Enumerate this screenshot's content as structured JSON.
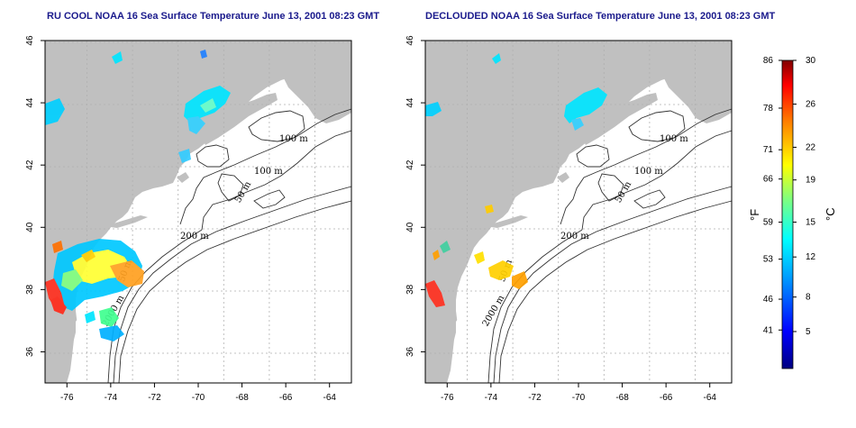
{
  "panels": [
    {
      "title": "RU COOL NOAA 16 Sea Surface Temperature June 13, 2001 08:23 GMT",
      "x_ticks": [
        "-76",
        "-74",
        "-72",
        "-70",
        "-68",
        "-66",
        "-64"
      ],
      "y_ticks": [
        "46",
        "44",
        "42",
        "40",
        "38",
        "36"
      ],
      "contours": [
        "100 m",
        "100 m",
        "50 m",
        "200 m",
        "50 m",
        "2000 m"
      ]
    },
    {
      "title": "DECLOUDED NOAA 16 Sea Surface Temperature June 13, 2001 08:23 GMT",
      "x_ticks": [
        "-76",
        "-74",
        "-72",
        "-70",
        "-68",
        "-66",
        "-64"
      ],
      "y_ticks": [
        "46",
        "44",
        "42",
        "40",
        "38",
        "36"
      ],
      "contours": [
        "100 m",
        "100 m",
        "50 m",
        "200 m",
        "50 m",
        "2000 m"
      ]
    }
  ],
  "colorbar": {
    "fahrenheit_ticks": [
      "86",
      "78",
      "71",
      "66",
      "59",
      "53",
      "46",
      "41"
    ],
    "celsius_ticks": [
      "30",
      "26",
      "22",
      "19",
      "15",
      "12",
      "8",
      "5"
    ],
    "f_label": "°F",
    "c_label": "°C",
    "colors": [
      "#000080",
      "#0000ff",
      "#00a0ff",
      "#00ffff",
      "#7fff7f",
      "#ffff00",
      "#ff8000",
      "#ff0000",
      "#800000"
    ]
  },
  "map_extent": {
    "lon": [
      -77,
      -63
    ],
    "lat": [
      35,
      46
    ]
  },
  "colors": {
    "land": "#c0c0c0",
    "title": "#1a1a8c",
    "grid": "#b0b0b0"
  }
}
